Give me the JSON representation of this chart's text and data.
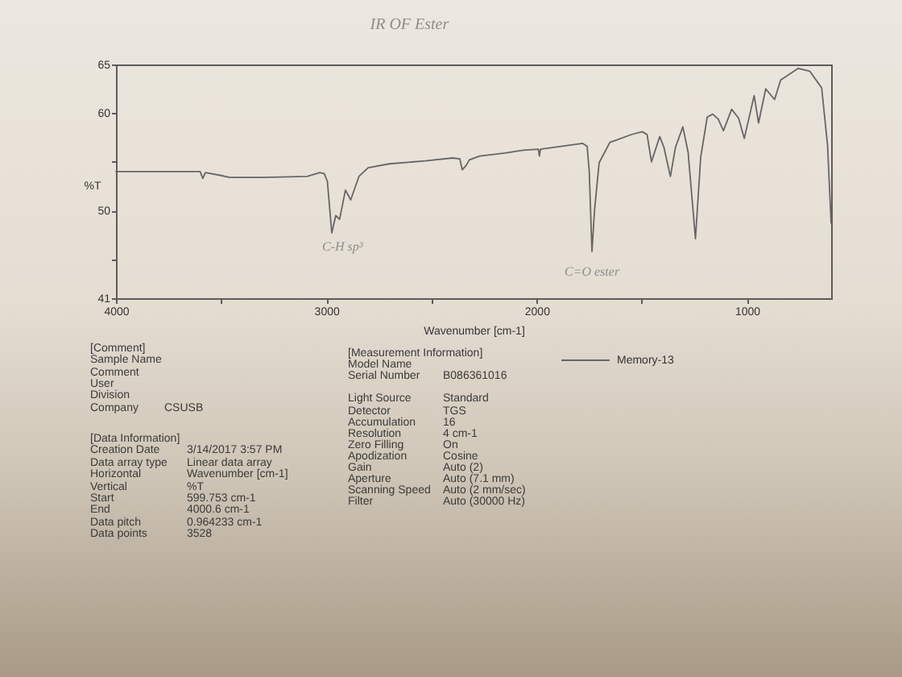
{
  "chart_data": {
    "type": "line",
    "title": "IR OF Ester",
    "xlabel": "Wavenumber [cm-1]",
    "ylabel": "%T",
    "x": [
      4000,
      3800,
      3600,
      3587,
      3575,
      3500,
      3460,
      3300,
      3091,
      3031,
      3010,
      2995,
      2974,
      2955,
      2937,
      2909,
      2884,
      2845,
      2801,
      2700,
      2529,
      2400,
      2365,
      2354,
      2336,
      2320,
      2271,
      2150,
      2064,
      1992,
      1987,
      1982,
      1850,
      1781,
      1760,
      1750,
      1737,
      1725,
      1703,
      1652,
      1550,
      1498,
      1475,
      1454,
      1415,
      1395,
      1364,
      1340,
      1305,
      1280,
      1245,
      1220,
      1189,
      1163,
      1137,
      1112,
      1073,
      1040,
      1013,
      966,
      945,
      911,
      869,
      840,
      756,
      701,
      645,
      617,
      600
    ],
    "series": [
      {
        "name": "Memory-13",
        "color": "#666666",
        "values": [
          54.0,
          54.0,
          54.0,
          53.3,
          53.9,
          53.6,
          53.4,
          53.4,
          53.5,
          53.9,
          53.8,
          53.0,
          47.7,
          49.5,
          49.1,
          52.1,
          51.1,
          53.5,
          54.4,
          54.8,
          55.1,
          55.4,
          55.3,
          54.2,
          54.6,
          55.2,
          55.6,
          55.9,
          56.2,
          56.3,
          55.6,
          56.3,
          56.7,
          56.9,
          56.6,
          54.0,
          45.8,
          50.0,
          54.9,
          57.0,
          57.8,
          58.1,
          57.8,
          55.0,
          57.6,
          56.5,
          53.5,
          56.5,
          58.6,
          56.0,
          47.1,
          55.5,
          59.6,
          59.9,
          59.4,
          58.2,
          60.4,
          59.5,
          57.4,
          61.8,
          59.0,
          62.5,
          61.4,
          63.4,
          64.6,
          64.3,
          62.6,
          56.7,
          48.7
        ]
      }
    ],
    "xlim": [
      4000,
      600
    ],
    "ylim": [
      41,
      65
    ],
    "xticks": [
      4000,
      {
        "value": 3500,
        "label": null
      },
      3000,
      {
        "value": 2500,
        "label": null
      },
      2000,
      {
        "value": 1500,
        "label": null
      },
      1000
    ],
    "yticks": [
      41,
      {
        "value": 45,
        "label": null
      },
      50,
      {
        "value": 55,
        "label": null
      },
      60,
      65
    ],
    "legend": "bottom",
    "annotations": [
      {
        "text": "C-H sp³",
        "x": 2974,
        "y": 47.7
      },
      {
        "text": "C=O ester",
        "x": 1737,
        "y": 45.8
      },
      "[Comment]",
      "Sample Name",
      "Comment",
      "User",
      "Division",
      "Company",
      "CSUSB",
      "[Data Information]",
      "Creation Date",
      "3/14/2017 3:57 PM",
      "Data array type",
      "Linear data array",
      "Horizontal",
      "Wavenumber [cm-1]",
      "Vertical",
      "%T",
      "Start",
      "599.753 cm-1",
      "End",
      "4000.6 cm-1",
      "Data pitch",
      "0.964233 cm-1",
      "Data points",
      "3528",
      "[Measurement Information]",
      "Model Name",
      "Serial Number",
      "B086361016",
      "Light Source",
      "Standard",
      "Detector",
      "TGS",
      "Accumulation",
      "16",
      "Resolution",
      "4 cm-1",
      "Zero Filling",
      "On",
      "Apodization",
      "Cosine",
      "Gain",
      "Auto (2)",
      "Aperture",
      "Auto (7.1 mm)",
      "Scanning Speed",
      "Auto (2 mm/sec)",
      "Filter",
      "Auto (30000 Hz)"
    ]
  }
}
